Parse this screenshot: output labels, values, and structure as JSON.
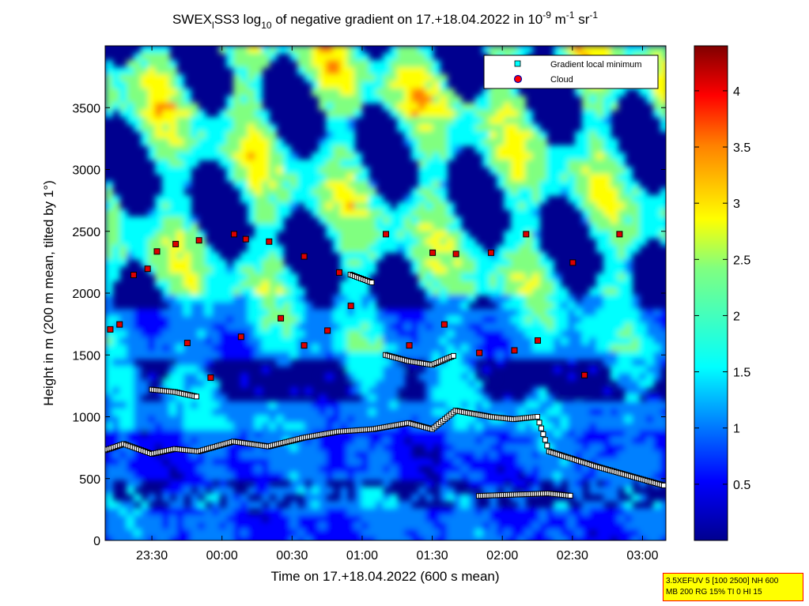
{
  "chart_data": {
    "type": "heatmap",
    "title": {
      "prefix": "SWEX",
      "sub": "l",
      "middle": "SS3 log",
      "sub2": "10",
      "suffix": " of negative gradient on 17.+18.04.2022 in 10",
      "sup1": "-9",
      "unit1": " m",
      "sup2": "-1",
      "unit2": " sr",
      "sup3": "-1"
    },
    "xlabel": "Time on 17.+18.04.2022 (600 s mean)",
    "ylabel": "Height in m (200 m mean, tilted by 1°)",
    "x_range": [
      "23:10",
      "03:10"
    ],
    "x_ticks": [
      "23:30",
      "00:00",
      "00:30",
      "01:00",
      "01:30",
      "02:00",
      "02:30",
      "03:00"
    ],
    "x_tick_minutes": [
      20,
      50,
      80,
      110,
      140,
      170,
      200,
      230
    ],
    "x_total_minutes": 240,
    "ylim": [
      0,
      4000
    ],
    "y_ticks": [
      "0",
      "500",
      "1000",
      "1500",
      "2000",
      "2500",
      "3000",
      "3500"
    ],
    "y_tick_values": [
      0,
      500,
      1000,
      1500,
      2000,
      2500,
      3000,
      3500
    ],
    "colorbar": {
      "range": [
        0,
        4.4
      ],
      "ticks": [
        "0.5",
        "1",
        "1.5",
        "2",
        "2.5",
        "3",
        "3.5",
        "4"
      ],
      "tick_values": [
        0.5,
        1,
        1.5,
        2,
        2.5,
        3,
        3.5,
        4
      ],
      "colormap": "jet"
    },
    "legend": {
      "position": "top-right",
      "entries": [
        {
          "label": "Gradient local minimum",
          "marker": "square",
          "color": "#00ffff"
        },
        {
          "label": "Cloud",
          "marker": "circle",
          "color": "#ff0000"
        }
      ]
    },
    "gradient_minimum_lines": [
      {
        "name": "",
        "points": [
          [
            0,
            730
          ],
          [
            8,
            780
          ],
          [
            20,
            700
          ],
          [
            30,
            740
          ],
          [
            40,
            720
          ],
          [
            55,
            800
          ],
          [
            70,
            760
          ],
          [
            85,
            830
          ],
          [
            100,
            880
          ],
          [
            115,
            900
          ],
          [
            130,
            950
          ],
          [
            140,
            900
          ],
          [
            150,
            1050
          ],
          [
            165,
            1000
          ],
          [
            175,
            980
          ],
          [
            185,
            1000
          ],
          [
            190,
            720
          ],
          [
            210,
            600
          ],
          [
            225,
            520
          ],
          [
            240,
            440
          ]
        ]
      },
      {
        "name": "",
        "points": [
          [
            160,
            360
          ],
          [
            175,
            370
          ],
          [
            190,
            380
          ],
          [
            200,
            360
          ]
        ]
      },
      {
        "name": "",
        "points": [
          [
            20,
            1220
          ],
          [
            30,
            1200
          ],
          [
            40,
            1160
          ]
        ]
      },
      {
        "name": "",
        "points": [
          [
            120,
            1500
          ],
          [
            130,
            1450
          ],
          [
            140,
            1420
          ],
          [
            150,
            1500
          ]
        ]
      },
      {
        "name": "",
        "points": [
          [
            105,
            2150
          ],
          [
            115,
            2080
          ]
        ]
      }
    ],
    "cloud_points": [
      [
        2,
        1710
      ],
      [
        6,
        1750
      ],
      [
        12,
        2150
      ],
      [
        18,
        2200
      ],
      [
        22,
        2340
      ],
      [
        30,
        2400
      ],
      [
        40,
        2430
      ],
      [
        55,
        2480
      ],
      [
        60,
        2440
      ],
      [
        70,
        2420
      ],
      [
        85,
        2300
      ],
      [
        100,
        2170
      ],
      [
        120,
        2480
      ],
      [
        140,
        2330
      ],
      [
        150,
        2320
      ],
      [
        165,
        2330
      ],
      [
        180,
        2480
      ],
      [
        200,
        2250
      ],
      [
        220,
        2480
      ],
      [
        35,
        1600
      ],
      [
        45,
        1320
      ],
      [
        58,
        1650
      ],
      [
        75,
        1800
      ],
      [
        85,
        1580
      ],
      [
        95,
        1700
      ],
      [
        105,
        1900
      ],
      [
        130,
        1580
      ],
      [
        145,
        1750
      ],
      [
        160,
        1520
      ],
      [
        175,
        1540
      ],
      [
        185,
        1620
      ],
      [
        205,
        1340
      ]
    ],
    "info_box": {
      "line1": "3.5XEFUV 5 [100 2500] NH 600",
      "line2": "MB 200 RG 15% TI 0 HI 15"
    },
    "colors": {
      "background_low": "#00008f",
      "jet_stops": [
        "#00008f",
        "#0000ff",
        "#0080ff",
        "#00ffff",
        "#80ff80",
        "#ffff00",
        "#ff8000",
        "#ff0000",
        "#800000"
      ]
    }
  }
}
